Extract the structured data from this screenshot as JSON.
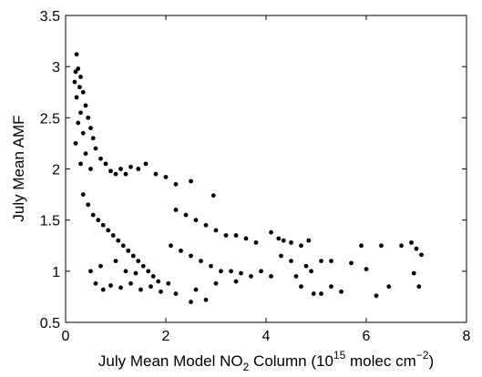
{
  "chart_data": {
    "type": "scatter",
    "xlabel": {
      "main": "July Mean Model NO",
      "sub": "2",
      "mid": " Column (10",
      "sup1": "15",
      "mid2": " molec cm",
      "sup2": "−2",
      "end": ")"
    },
    "ylabel": "July Mean AMF",
    "xlim": [
      0,
      8
    ],
    "ylim": [
      0.5,
      3.5
    ],
    "xticks": [
      "0",
      "2",
      "4",
      "6",
      "8"
    ],
    "yticks": [
      "0.5",
      "1",
      "1.5",
      "2",
      "2.5",
      "3",
      "3.5"
    ],
    "grid": false,
    "marker_color": "#000000",
    "series": [
      {
        "points": [
          [
            0.22,
            3.12
          ],
          [
            0.25,
            2.98
          ],
          [
            0.2,
            2.95
          ],
          [
            0.3,
            2.9
          ],
          [
            0.18,
            2.85
          ],
          [
            0.28,
            2.8
          ],
          [
            0.35,
            2.75
          ],
          [
            0.22,
            2.7
          ],
          [
            0.4,
            2.62
          ],
          [
            0.3,
            2.55
          ],
          [
            0.45,
            2.5
          ],
          [
            0.25,
            2.45
          ],
          [
            0.5,
            2.4
          ],
          [
            0.35,
            2.35
          ],
          [
            0.55,
            2.3
          ],
          [
            0.2,
            2.25
          ],
          [
            0.6,
            2.2
          ],
          [
            0.4,
            2.15
          ],
          [
            0.7,
            2.1
          ],
          [
            0.3,
            2.05
          ],
          [
            0.8,
            2.05
          ],
          [
            0.5,
            2.0
          ],
          [
            0.9,
            1.98
          ],
          [
            1.0,
            1.95
          ],
          [
            1.1,
            2.0
          ],
          [
            1.2,
            1.95
          ],
          [
            1.3,
            2.02
          ],
          [
            1.45,
            2.0
          ],
          [
            1.6,
            2.05
          ],
          [
            1.8,
            1.95
          ],
          [
            2.0,
            1.92
          ],
          [
            2.2,
            1.85
          ],
          [
            2.5,
            1.88
          ],
          [
            2.95,
            1.74
          ],
          [
            2.2,
            1.6
          ],
          [
            2.4,
            1.55
          ],
          [
            2.6,
            1.5
          ],
          [
            2.8,
            1.45
          ],
          [
            3.0,
            1.4
          ],
          [
            3.2,
            1.35
          ],
          [
            3.4,
            1.35
          ],
          [
            3.6,
            1.32
          ],
          [
            3.8,
            1.28
          ],
          [
            2.1,
            1.25
          ],
          [
            2.3,
            1.2
          ],
          [
            2.5,
            1.15
          ],
          [
            2.7,
            1.1
          ],
          [
            2.9,
            1.05
          ],
          [
            3.1,
            1.0
          ],
          [
            3.3,
            1.0
          ],
          [
            3.5,
            0.98
          ],
          [
            3.7,
            0.95
          ],
          [
            3.9,
            1.0
          ],
          [
            4.1,
            0.95
          ],
          [
            3.4,
            0.9
          ],
          [
            3.0,
            0.88
          ],
          [
            2.6,
            0.82
          ],
          [
            2.2,
            0.78
          ],
          [
            2.5,
            0.7
          ],
          [
            2.8,
            0.72
          ],
          [
            4.1,
            1.38
          ],
          [
            4.25,
            1.32
          ],
          [
            4.35,
            1.3
          ],
          [
            4.5,
            1.28
          ],
          [
            4.7,
            1.25
          ],
          [
            4.85,
            1.3
          ],
          [
            4.3,
            1.15
          ],
          [
            4.5,
            1.1
          ],
          [
            4.8,
            1.05
          ],
          [
            4.9,
            1.0
          ],
          [
            5.1,
            1.1
          ],
          [
            5.3,
            1.1
          ],
          [
            4.6,
            0.95
          ],
          [
            4.7,
            0.85
          ],
          [
            4.95,
            0.78
          ],
          [
            5.1,
            0.78
          ],
          [
            5.3,
            0.85
          ],
          [
            5.5,
            0.8
          ],
          [
            5.7,
            1.08
          ],
          [
            6.0,
            1.02
          ],
          [
            5.9,
            1.25
          ],
          [
            6.3,
            1.25
          ],
          [
            6.45,
            0.85
          ],
          [
            6.2,
            0.76
          ],
          [
            6.7,
            1.25
          ],
          [
            6.9,
            1.28
          ],
          [
            7.0,
            1.22
          ],
          [
            7.1,
            1.16
          ],
          [
            6.95,
            0.98
          ],
          [
            7.05,
            0.85
          ],
          [
            0.35,
            1.75
          ],
          [
            0.45,
            1.65
          ],
          [
            0.55,
            1.55
          ],
          [
            0.65,
            1.5
          ],
          [
            0.75,
            1.45
          ],
          [
            0.85,
            1.4
          ],
          [
            0.95,
            1.35
          ],
          [
            1.05,
            1.3
          ],
          [
            1.15,
            1.25
          ],
          [
            1.25,
            1.2
          ],
          [
            1.35,
            1.15
          ],
          [
            1.45,
            1.1
          ],
          [
            1.55,
            1.05
          ],
          [
            1.65,
            1.0
          ],
          [
            1.75,
            0.95
          ],
          [
            1.85,
            0.9
          ],
          [
            0.6,
            0.88
          ],
          [
            0.75,
            0.82
          ],
          [
            0.9,
            0.86
          ],
          [
            1.1,
            0.84
          ],
          [
            1.3,
            0.88
          ],
          [
            1.5,
            0.82
          ],
          [
            1.7,
            0.85
          ],
          [
            1.9,
            0.8
          ],
          [
            2.05,
            0.88
          ],
          [
            0.5,
            1.0
          ],
          [
            0.7,
            1.05
          ],
          [
            1.0,
            1.1
          ],
          [
            1.2,
            1.0
          ],
          [
            1.4,
            0.98
          ]
        ]
      }
    ]
  }
}
